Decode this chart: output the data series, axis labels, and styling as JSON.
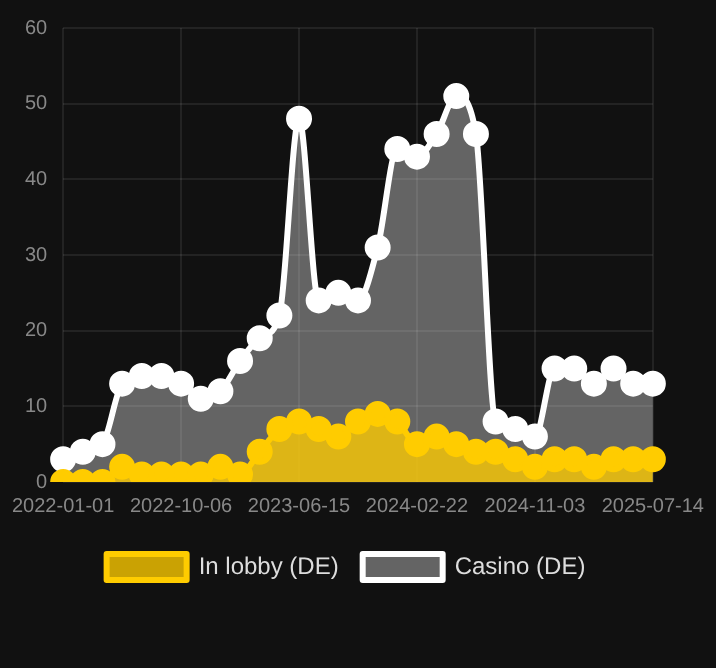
{
  "chart_data": {
    "type": "area",
    "categories": [
      "2022-01-01",
      null,
      null,
      null,
      null,
      null,
      "2022-10-06",
      null,
      null,
      null,
      null,
      null,
      "2023-06-15",
      null,
      null,
      null,
      null,
      null,
      "2024-02-22",
      null,
      null,
      null,
      null,
      null,
      "2024-11-03",
      null,
      null,
      null,
      null,
      null,
      "2025-07-14"
    ],
    "series": [
      {
        "name": "In lobby (DE)",
        "color": "#ffcc00",
        "values": [
          0,
          0,
          0,
          2,
          1,
          1,
          1,
          1,
          2,
          1,
          4,
          7,
          8,
          7,
          6,
          8,
          9,
          8,
          5,
          6,
          5,
          4,
          4,
          3,
          2,
          3,
          3,
          2,
          3,
          3,
          3
        ]
      },
      {
        "name": "Casino (DE)",
        "color": "#ffffff",
        "values": [
          3,
          4,
          5,
          13,
          14,
          14,
          13,
          11,
          12,
          16,
          19,
          22,
          48,
          24,
          25,
          24,
          31,
          44,
          43,
          46,
          51,
          46,
          8,
          7,
          6,
          15,
          15,
          13,
          15,
          13,
          13
        ]
      }
    ],
    "ylim": [
      0,
      60
    ],
    "yticks": [
      0,
      10,
      20,
      30,
      40,
      50,
      60
    ],
    "grid": true,
    "legend": "bottom",
    "marker": "circle"
  }
}
